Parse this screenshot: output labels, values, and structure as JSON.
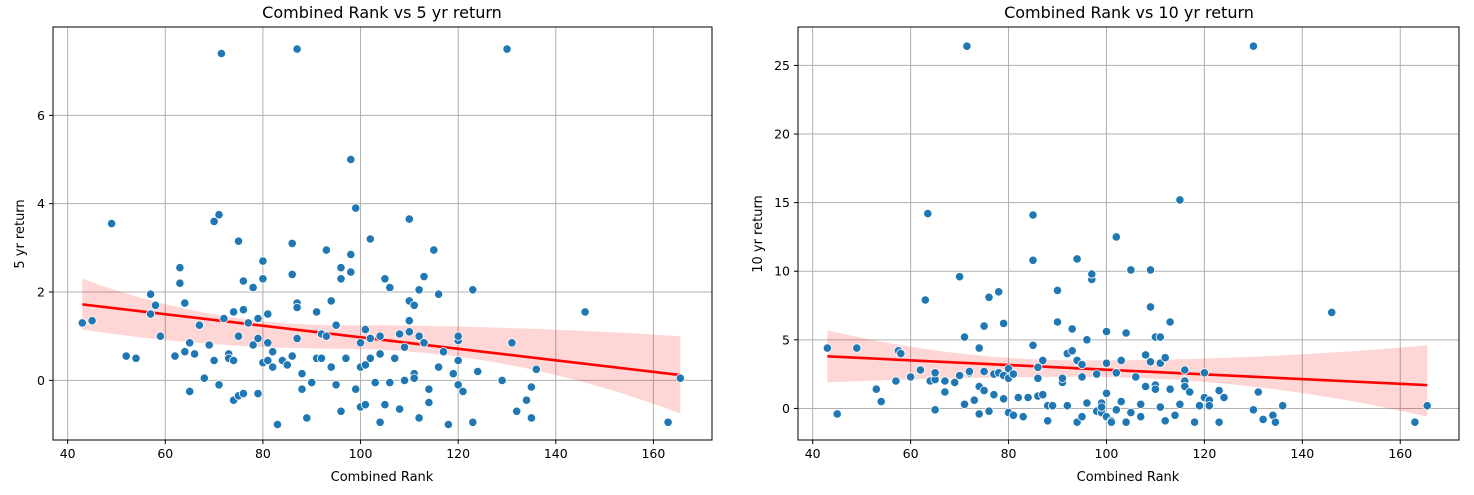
{
  "chart_data": [
    {
      "type": "scatter",
      "title": "Combined Rank vs 5 yr return",
      "xlabel": "Combined Rank",
      "ylabel": "5 yr return",
      "xlim": [
        37,
        172
      ],
      "ylim": [
        -1.35,
        8.0
      ],
      "xticks": [
        40,
        60,
        80,
        100,
        120,
        140,
        160
      ],
      "yticks": [
        0,
        2,
        4,
        6
      ],
      "grid": true,
      "regression": {
        "x": [
          43,
          165.5
        ],
        "y": [
          1.72,
          0.12
        ],
        "ci_lower_start": 1.15,
        "ci_upper_start": 2.3,
        "ci_lower_mid": 0.72,
        "ci_upper_mid": 1.25,
        "ci_mid_x": 95,
        "ci_lower_end": -0.75,
        "ci_upper_end": 1.0
      },
      "points": [
        [
          43,
          1.3
        ],
        [
          45,
          1.35
        ],
        [
          49,
          3.55
        ],
        [
          52,
          0.55
        ],
        [
          54,
          0.5
        ],
        [
          57,
          1.95
        ],
        [
          57,
          1.5
        ],
        [
          58,
          1.7
        ],
        [
          59,
          1.0
        ],
        [
          62,
          0.55
        ],
        [
          63,
          2.55
        ],
        [
          63,
          2.2
        ],
        [
          64,
          0.65
        ],
        [
          64,
          1.75
        ],
        [
          65,
          -0.25
        ],
        [
          65,
          0.85
        ],
        [
          66,
          0.6
        ],
        [
          67,
          1.25
        ],
        [
          68,
          0.05
        ],
        [
          69,
          0.8
        ],
        [
          70,
          3.6
        ],
        [
          70,
          0.45
        ],
        [
          71,
          3.75
        ],
        [
          71,
          -0.1
        ],
        [
          72,
          1.4
        ],
        [
          73,
          0.6
        ],
        [
          73,
          0.5
        ],
        [
          74,
          1.55
        ],
        [
          74,
          -0.45
        ],
        [
          74,
          0.45
        ],
        [
          75,
          3.15
        ],
        [
          75,
          1.0
        ],
        [
          75,
          -0.35
        ],
        [
          76,
          -0.3
        ],
        [
          76,
          2.25
        ],
        [
          76,
          1.6
        ],
        [
          77,
          1.3
        ],
        [
          78,
          0.8
        ],
        [
          78,
          2.1
        ],
        [
          79,
          0.95
        ],
        [
          79,
          1.4
        ],
        [
          79,
          -0.3
        ],
        [
          80,
          2.3
        ],
        [
          80,
          2.7
        ],
        [
          80,
          0.4
        ],
        [
          81,
          0.85
        ],
        [
          81,
          1.5
        ],
        [
          81,
          0.45
        ],
        [
          82,
          0.3
        ],
        [
          82,
          0.65
        ],
        [
          83,
          -1.0
        ],
        [
          84,
          0.45
        ],
        [
          85,
          0.35
        ],
        [
          86,
          2.4
        ],
        [
          86,
          3.1
        ],
        [
          86,
          0.55
        ],
        [
          87,
          1.75
        ],
        [
          87,
          1.65
        ],
        [
          87,
          0.95
        ],
        [
          88,
          0.15
        ],
        [
          88,
          -0.2
        ],
        [
          89,
          -0.85
        ],
        [
          90,
          -0.05
        ],
        [
          91,
          1.55
        ],
        [
          91,
          0.5
        ],
        [
          92,
          1.05
        ],
        [
          92,
          0.5
        ],
        [
          93,
          1.0
        ],
        [
          93,
          2.95
        ],
        [
          94,
          1.8
        ],
        [
          94,
          0.3
        ],
        [
          95,
          1.25
        ],
        [
          95,
          -0.1
        ],
        [
          96,
          2.3
        ],
        [
          96,
          -0.7
        ],
        [
          96,
          2.55
        ],
        [
          97,
          0.5
        ],
        [
          98,
          2.85
        ],
        [
          98,
          2.45
        ],
        [
          98,
          5.0
        ],
        [
          99,
          3.9
        ],
        [
          99,
          -0.2
        ],
        [
          100,
          0.85
        ],
        [
          100,
          0.3
        ],
        [
          100,
          -0.6
        ],
        [
          101,
          -0.55
        ],
        [
          101,
          1.15
        ],
        [
          101,
          0.35
        ],
        [
          102,
          0.95
        ],
        [
          102,
          3.2
        ],
        [
          102,
          0.5
        ],
        [
          103,
          -0.05
        ],
        [
          104,
          0.6
        ],
        [
          104,
          1.0
        ],
        [
          104,
          -0.95
        ],
        [
          105,
          2.3
        ],
        [
          105,
          -0.55
        ],
        [
          106,
          2.1
        ],
        [
          106,
          -0.05
        ],
        [
          107,
          0.5
        ],
        [
          108,
          -0.65
        ],
        [
          108,
          1.05
        ],
        [
          109,
          0.0
        ],
        [
          109,
          0.75
        ],
        [
          110,
          3.65
        ],
        [
          110,
          1.8
        ],
        [
          110,
          1.35
        ],
        [
          110,
          1.1
        ],
        [
          111,
          1.7
        ],
        [
          111,
          0.15
        ],
        [
          111,
          0.05
        ],
        [
          112,
          2.05
        ],
        [
          112,
          1.0
        ],
        [
          112,
          -0.85
        ],
        [
          113,
          0.85
        ],
        [
          113,
          2.35
        ],
        [
          114,
          -0.5
        ],
        [
          114,
          -0.2
        ],
        [
          115,
          2.95
        ],
        [
          116,
          0.3
        ],
        [
          116,
          1.95
        ],
        [
          117,
          0.65
        ],
        [
          118,
          -1.0
        ],
        [
          119,
          0.15
        ],
        [
          120,
          0.45
        ],
        [
          120,
          0.9
        ],
        [
          120,
          1.0
        ],
        [
          120,
          -0.1
        ],
        [
          121,
          -0.25
        ],
        [
          123,
          2.05
        ],
        [
          123,
          -0.95
        ],
        [
          124,
          0.2
        ],
        [
          129,
          0.0
        ],
        [
          131,
          0.85
        ],
        [
          132,
          -0.7
        ],
        [
          134,
          -0.45
        ],
        [
          135,
          -0.85
        ],
        [
          135,
          -0.15
        ],
        [
          136,
          0.25
        ],
        [
          146,
          1.55
        ],
        [
          163,
          -0.95
        ],
        [
          165.5,
          0.05
        ],
        [
          71.5,
          7.4
        ],
        [
          87,
          7.5
        ],
        [
          130,
          7.5
        ]
      ]
    },
    {
      "type": "scatter",
      "title": "Combined Rank vs 10 yr return",
      "xlabel": "Combined Rank",
      "ylabel": "10 yr return",
      "xlim": [
        37,
        172
      ],
      "ylim": [
        -2.3,
        27.8
      ],
      "xticks": [
        40,
        60,
        80,
        100,
        120,
        140,
        160
      ],
      "yticks": [
        0,
        5,
        10,
        15,
        20,
        25
      ],
      "grid": true,
      "regression": {
        "x": [
          43,
          165.5
        ],
        "y": [
          3.8,
          1.7
        ],
        "ci_lower_start": 1.9,
        "ci_upper_start": 5.7,
        "ci_lower_mid": 2.3,
        "ci_upper_mid": 3.5,
        "ci_mid_x": 95,
        "ci_lower_end": -0.6,
        "ci_upper_end": 4.6
      },
      "points": [
        [
          43,
          4.4
        ],
        [
          45,
          -0.4
        ],
        [
          49,
          4.4
        ],
        [
          53,
          1.4
        ],
        [
          54,
          0.5
        ],
        [
          57,
          2.0
        ],
        [
          57.5,
          4.2
        ],
        [
          58,
          4.0
        ],
        [
          60,
          2.3
        ],
        [
          62,
          2.8
        ],
        [
          63,
          7.9
        ],
        [
          63.5,
          14.2
        ],
        [
          64,
          2.0
        ],
        [
          65,
          2.1
        ],
        [
          65,
          -0.1
        ],
        [
          65,
          2.6
        ],
        [
          67,
          2.0
        ],
        [
          67,
          1.2
        ],
        [
          69,
          1.9
        ],
        [
          70,
          9.6
        ],
        [
          70,
          2.4
        ],
        [
          71,
          5.2
        ],
        [
          71,
          0.3
        ],
        [
          72,
          2.6
        ],
        [
          72,
          2.7
        ],
        [
          73,
          0.6
        ],
        [
          74,
          4.4
        ],
        [
          74,
          1.6
        ],
        [
          74,
          -0.4
        ],
        [
          75,
          6.0
        ],
        [
          75,
          1.3
        ],
        [
          75,
          2.7
        ],
        [
          76,
          -0.2
        ],
        [
          76,
          8.1
        ],
        [
          77,
          1.0
        ],
        [
          77,
          2.5
        ],
        [
          78,
          8.5
        ],
        [
          78,
          2.6
        ],
        [
          79,
          6.2
        ],
        [
          79,
          2.4
        ],
        [
          79,
          0.7
        ],
        [
          80,
          2.9
        ],
        [
          80,
          2.2
        ],
        [
          80,
          -0.3
        ],
        [
          81,
          2.5
        ],
        [
          81,
          -0.5
        ],
        [
          82,
          0.8
        ],
        [
          83,
          -0.6
        ],
        [
          84,
          0.8
        ],
        [
          85,
          14.1
        ],
        [
          85,
          10.8
        ],
        [
          85,
          4.6
        ],
        [
          86,
          2.2
        ],
        [
          86,
          3.0
        ],
        [
          86,
          0.9
        ],
        [
          87,
          1.0
        ],
        [
          87,
          3.5
        ],
        [
          88,
          0.2
        ],
        [
          88,
          -0.9
        ],
        [
          89,
          0.2
        ],
        [
          90,
          6.3
        ],
        [
          90,
          8.6
        ],
        [
          91,
          1.9
        ],
        [
          91,
          2.2
        ],
        [
          92,
          0.2
        ],
        [
          92,
          4.0
        ],
        [
          93,
          5.8
        ],
        [
          93,
          4.2
        ],
        [
          94,
          10.9
        ],
        [
          94,
          3.5
        ],
        [
          94,
          -1.0
        ],
        [
          95,
          3.2
        ],
        [
          95,
          2.3
        ],
        [
          95,
          -0.6
        ],
        [
          96,
          0.4
        ],
        [
          96,
          5.0
        ],
        [
          97,
          9.4
        ],
        [
          97,
          9.8
        ],
        [
          98,
          -0.2
        ],
        [
          98,
          2.5
        ],
        [
          99,
          0.4
        ],
        [
          99,
          -0.3
        ],
        [
          99,
          0.1
        ],
        [
          100,
          -0.6
        ],
        [
          100,
          3.3
        ],
        [
          100,
          5.6
        ],
        [
          100,
          1.1
        ],
        [
          101,
          -0.9
        ],
        [
          101,
          -1.0
        ],
        [
          102,
          12.5
        ],
        [
          102,
          2.6
        ],
        [
          102,
          -0.1
        ],
        [
          103,
          0.5
        ],
        [
          103,
          3.5
        ],
        [
          104,
          5.5
        ],
        [
          104,
          -1.0
        ],
        [
          105,
          10.1
        ],
        [
          105,
          -0.3
        ],
        [
          106,
          2.3
        ],
        [
          107,
          0.3
        ],
        [
          107,
          -0.6
        ],
        [
          108,
          3.9
        ],
        [
          108,
          1.6
        ],
        [
          109,
          10.1
        ],
        [
          109,
          7.4
        ],
        [
          109,
          3.4
        ],
        [
          110,
          5.2
        ],
        [
          110,
          1.7
        ],
        [
          110,
          1.4
        ],
        [
          111,
          5.2
        ],
        [
          111,
          0.1
        ],
        [
          111,
          3.3
        ],
        [
          112,
          -0.9
        ],
        [
          112,
          3.7
        ],
        [
          113,
          6.3
        ],
        [
          113,
          1.4
        ],
        [
          114,
          -0.5
        ],
        [
          115,
          15.2
        ],
        [
          115,
          0.3
        ],
        [
          116,
          2.8
        ],
        [
          116,
          2.0
        ],
        [
          116,
          1.6
        ],
        [
          117,
          1.2
        ],
        [
          118,
          -1.0
        ],
        [
          119,
          0.2
        ],
        [
          120,
          2.6
        ],
        [
          120,
          0.8
        ],
        [
          121,
          0.6
        ],
        [
          121,
          0.2
        ],
        [
          123,
          1.3
        ],
        [
          123,
          -1.0
        ],
        [
          124,
          0.8
        ],
        [
          130,
          -0.1
        ],
        [
          131,
          1.2
        ],
        [
          132,
          -0.8
        ],
        [
          134,
          -0.5
        ],
        [
          134.5,
          -1.0
        ],
        [
          136,
          0.2
        ],
        [
          146,
          7.0
        ],
        [
          163,
          -1.0
        ],
        [
          165.5,
          0.2
        ],
        [
          71.5,
          26.4
        ],
        [
          130,
          26.4
        ]
      ]
    }
  ]
}
